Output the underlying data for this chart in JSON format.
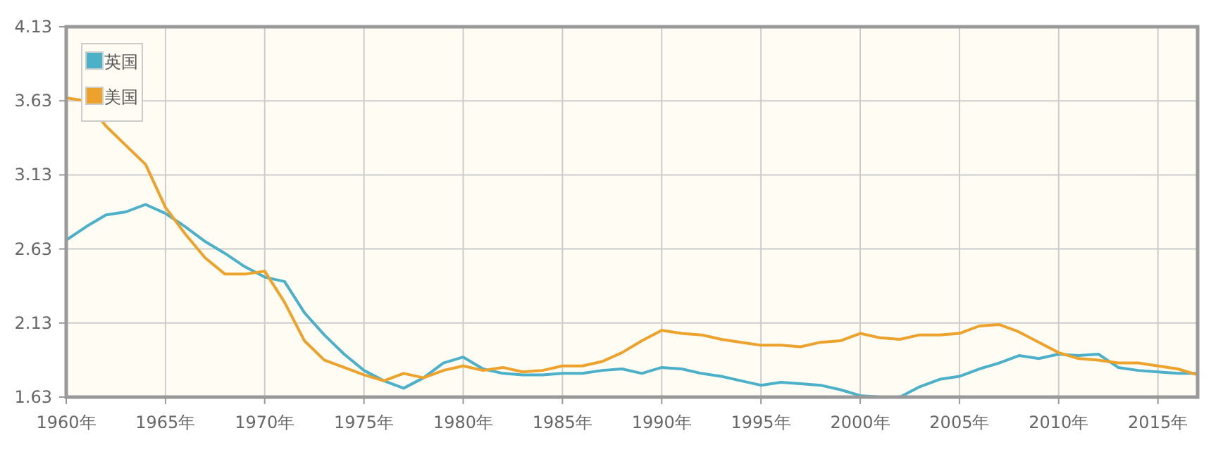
{
  "chart_data": {
    "type": "line",
    "x": [
      1960,
      1961,
      1962,
      1963,
      1964,
      1965,
      1966,
      1967,
      1968,
      1969,
      1970,
      1971,
      1972,
      1973,
      1974,
      1975,
      1976,
      1977,
      1978,
      1979,
      1980,
      1981,
      1982,
      1983,
      1984,
      1985,
      1986,
      1987,
      1988,
      1989,
      1990,
      1991,
      1992,
      1993,
      1994,
      1995,
      1996,
      1997,
      1998,
      1999,
      2000,
      2001,
      2002,
      2003,
      2004,
      2005,
      2006,
      2007,
      2008,
      2009,
      2010,
      2011,
      2012,
      2013,
      2014,
      2015,
      2016,
      2017
    ],
    "series": [
      {
        "name": "英国",
        "color": "#4bb0c8",
        "values": [
          2.69,
          2.78,
          2.86,
          2.88,
          2.93,
          2.87,
          2.78,
          2.68,
          2.6,
          2.51,
          2.44,
          2.41,
          2.2,
          2.05,
          1.92,
          1.81,
          1.74,
          1.69,
          1.76,
          1.86,
          1.9,
          1.82,
          1.79,
          1.78,
          1.78,
          1.79,
          1.79,
          1.81,
          1.82,
          1.79,
          1.83,
          1.82,
          1.79,
          1.77,
          1.74,
          1.71,
          1.73,
          1.72,
          1.71,
          1.68,
          1.64,
          1.63,
          1.63,
          1.7,
          1.75,
          1.77,
          1.82,
          1.86,
          1.91,
          1.89,
          1.92,
          1.91,
          1.92,
          1.83,
          1.81,
          1.8,
          1.79,
          1.79
        ]
      },
      {
        "name": "美国",
        "color": "#eda32b",
        "values": [
          3.65,
          3.63,
          3.46,
          3.33,
          3.2,
          2.91,
          2.73,
          2.57,
          2.46,
          2.46,
          2.48,
          2.27,
          2.01,
          1.88,
          1.83,
          1.78,
          1.74,
          1.79,
          1.76,
          1.81,
          1.84,
          1.81,
          1.83,
          1.8,
          1.81,
          1.84,
          1.84,
          1.87,
          1.93,
          2.01,
          2.08,
          2.06,
          2.05,
          2.02,
          2.0,
          1.98,
          1.98,
          1.97,
          2.0,
          2.01,
          2.06,
          2.03,
          2.02,
          2.05,
          2.05,
          2.06,
          2.11,
          2.12,
          2.07,
          2.0,
          1.93,
          1.89,
          1.88,
          1.86,
          1.86,
          1.84,
          1.82,
          1.78
        ]
      }
    ],
    "xlim": [
      1960,
      2017
    ],
    "xticks": [
      {
        "value": 1960,
        "label": "1960年"
      },
      {
        "value": 1965,
        "label": "1965年"
      },
      {
        "value": 1970,
        "label": "1970年"
      },
      {
        "value": 1975,
        "label": "1975年"
      },
      {
        "value": 1980,
        "label": "1980年"
      },
      {
        "value": 1985,
        "label": "1985年"
      },
      {
        "value": 1990,
        "label": "1990年"
      },
      {
        "value": 1995,
        "label": "1995年"
      },
      {
        "value": 2000,
        "label": "2000年"
      },
      {
        "value": 2005,
        "label": "2005年"
      },
      {
        "value": 2010,
        "label": "2010年"
      },
      {
        "value": 2015,
        "label": "2015年"
      }
    ],
    "ylim": [
      1.63,
      4.13
    ],
    "yticks": [
      1.63,
      2.13,
      2.63,
      3.13,
      3.63,
      4.13
    ],
    "grid": true,
    "legend": "top left",
    "marker": "none",
    "line_style": "solid"
  }
}
